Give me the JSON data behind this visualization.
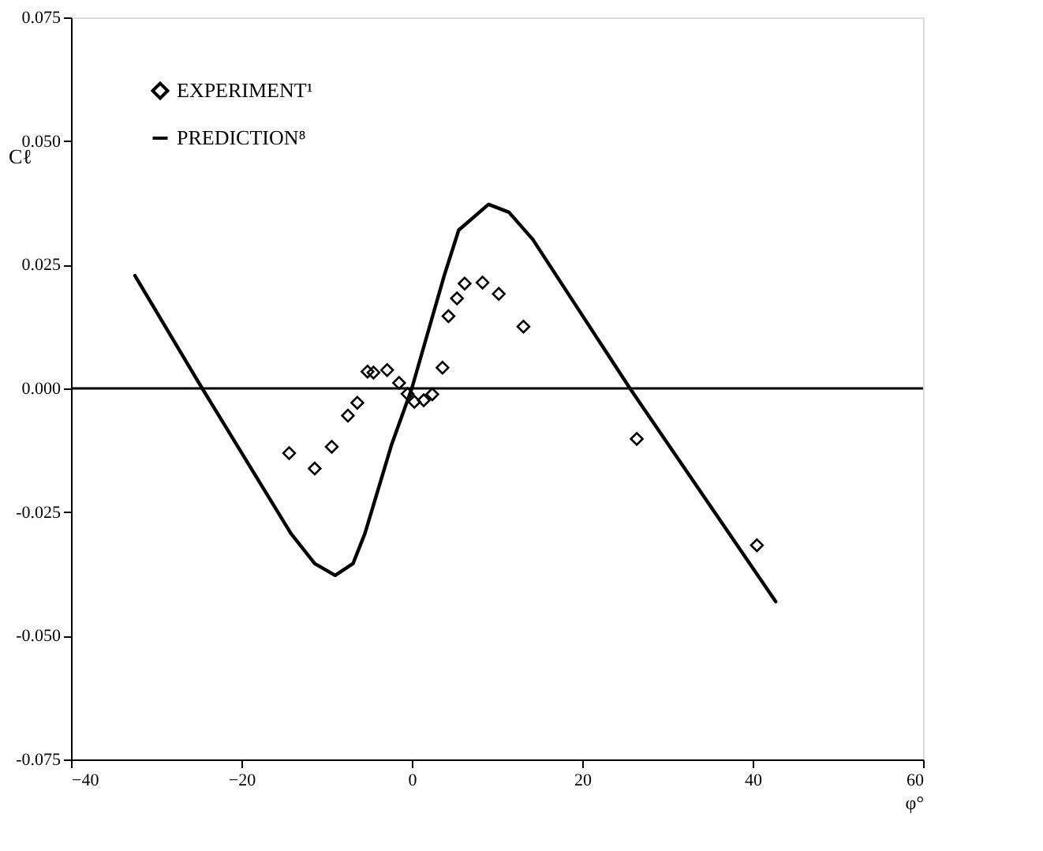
{
  "chart_data": {
    "type": "scatter",
    "xlabel": "φ°",
    "ylabel": "Cℓ",
    "xlim": [
      -40,
      60
    ],
    "xticks": [
      -40,
      -20,
      0,
      20,
      40,
      60
    ],
    "ylim": [
      -0.075,
      0.075
    ],
    "yticks": [
      {
        "value": -0.075,
        "label": "-0.075"
      },
      {
        "value": -0.05,
        "label": "-0.050"
      },
      {
        "value": -0.025,
        "label": "-0.025"
      },
      {
        "value": 0,
        "label": "0.000"
      },
      {
        "value": 0.025,
        "label": "0.025"
      },
      {
        "value": 0.05,
        "label": "0.050"
      },
      {
        "value": 0.075,
        "label": "0.075"
      }
    ],
    "grid": false,
    "legend": "top left",
    "ref_lines": [
      {
        "axis": "y",
        "value": 0,
        "color": "#000000"
      }
    ],
    "series": [
      {
        "name": "EXPERIMENT¹",
        "type": "scatter",
        "marker": "diamond",
        "color": "#000000",
        "x": [
          -14.4,
          -11.4,
          -9.4,
          -7.5,
          -6.4,
          -5.2,
          -4.5,
          -2.9,
          -1.5,
          -0.5,
          0.3,
          1.4,
          2.4,
          3.6,
          4.3,
          5.3,
          6.2,
          8.3,
          10.2,
          13.1,
          26.4,
          40.5
        ],
        "values": [
          -0.0131,
          -0.0162,
          -0.0118,
          -0.0055,
          -0.0029,
          0.0034,
          0.0032,
          0.0037,
          0.0011,
          -0.0011,
          -0.0027,
          -0.0024,
          -0.0012,
          0.0042,
          0.0146,
          0.0182,
          0.0212,
          0.0214,
          0.0191,
          0.0125,
          -0.0102,
          -0.0317
        ]
      },
      {
        "name": "PREDICTION⁸",
        "type": "line",
        "line_style": "solid",
        "color": "#000000",
        "x": [
          -32.5,
          -24.6,
          -14.2,
          -11.4,
          -9.0,
          -6.9,
          -5.5,
          -2.4,
          0,
          3.8,
          5.5,
          9.0,
          11.4,
          14.2,
          25.6,
          42.7
        ],
        "values": [
          0.0228,
          0,
          -0.0293,
          -0.0354,
          -0.0378,
          -0.0354,
          -0.0293,
          -0.0115,
          0,
          0.0228,
          0.032,
          0.0372,
          0.0356,
          0.0301,
          0,
          -0.0431
        ]
      }
    ]
  }
}
